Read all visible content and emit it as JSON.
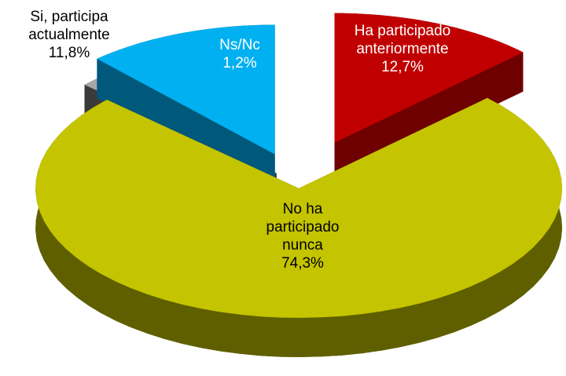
{
  "chart_data": {
    "type": "pie",
    "categories": [
      "Ha participado anteriormente",
      "No ha participado nunca",
      "Ns/Nc",
      "Si, participa actualmente"
    ],
    "values": [
      12.7,
      74.3,
      1.2,
      11.8
    ],
    "value_labels": [
      "12,7%",
      "74,3%",
      "1,2%",
      "11,8%"
    ],
    "colors": [
      "#c00000",
      "#c4c400",
      "#a6a6a6",
      "#00b0f0"
    ],
    "side_colors": [
      "#6e0000",
      "#5f5f00",
      "#3a3a3a",
      "#00587a"
    ],
    "label_colors": [
      "#ffffff",
      "#000000",
      "#ffffff",
      "#000000"
    ]
  }
}
